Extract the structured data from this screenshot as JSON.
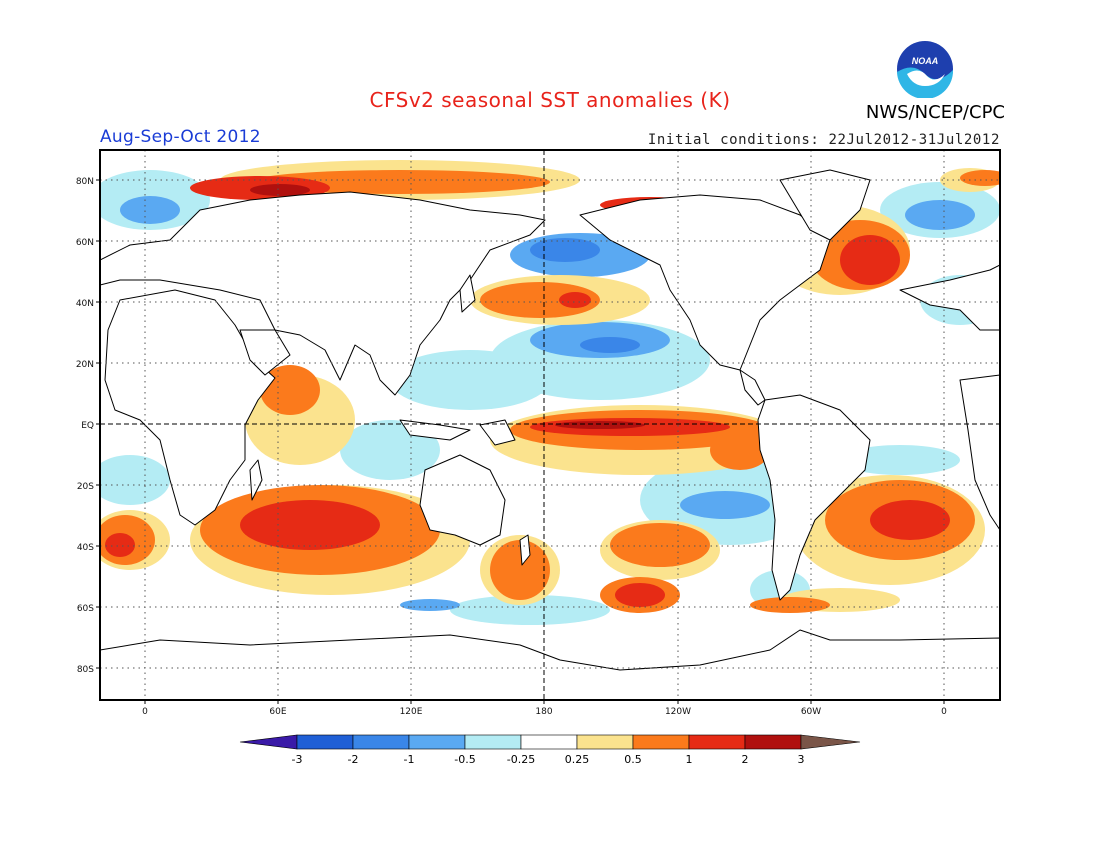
{
  "header": {
    "title": "CFSv2 seasonal SST anomalies (K)",
    "season": "Aug-Sep-Oct 2012",
    "initial_conditions": "Initial conditions: 22Jul2012-31Jul2012",
    "agency": "NWS/NCEP/CPC",
    "logo_text": "NOAA"
  },
  "map": {
    "projection": "cylindrical equidistant",
    "lat_ticks": [
      "80N",
      "60N",
      "40N",
      "20N",
      "EQ",
      "20S",
      "40S",
      "60S",
      "80S"
    ],
    "lon_ticks": [
      "0",
      "60E",
      "120E",
      "180",
      "120W",
      "60W",
      "0"
    ],
    "lon_range": [
      -20,
      385
    ],
    "lat_range": [
      -90,
      90
    ],
    "reference_lines": [
      "Equator",
      "180"
    ],
    "grid": "dotted"
  },
  "colorbar": {
    "unit": "K",
    "labels": [
      "-3",
      "-2",
      "-1",
      "-0.5",
      "-0.25",
      "0.25",
      "0.5",
      "1",
      "2",
      "3"
    ],
    "colors": [
      "#3a1aa8",
      "#1f5fd6",
      "#3a86e8",
      "#5aa9f2",
      "#b4ecf4",
      "#ffffff",
      "#fbe38e",
      "#fb7a1c",
      "#e62b15",
      "#b0100e",
      "#7a5548"
    ]
  }
}
